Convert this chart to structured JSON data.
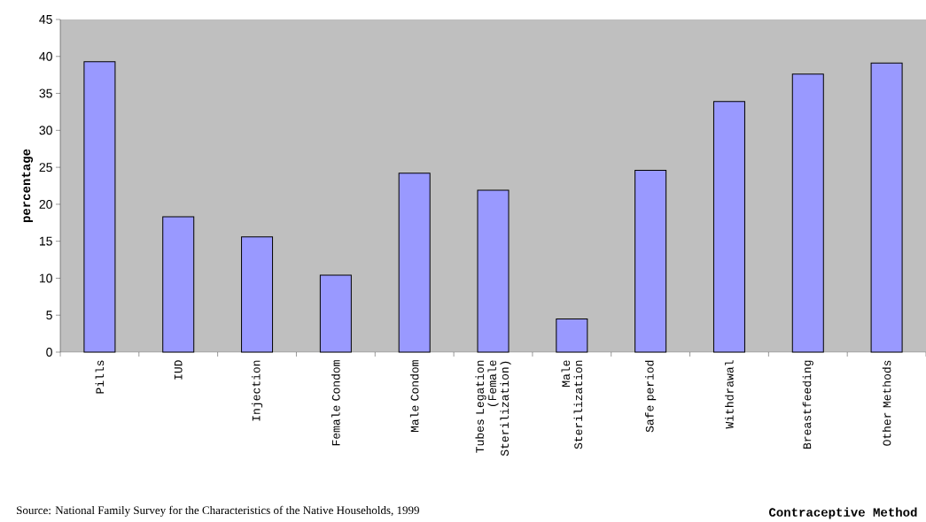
{
  "chart_data": {
    "type": "bar",
    "categories": [
      "Pills",
      "IUD",
      "Injection",
      "Female Condom",
      "Male Condom",
      "Tubes Legation (Female Sterilization)",
      "Male Sterilization",
      "Safe period",
      "Withdrawal",
      "Breastfeeding",
      "Other Methods"
    ],
    "values": [
      39.3,
      18.3,
      15.6,
      10.4,
      24.2,
      21.9,
      4.5,
      24.6,
      33.9,
      37.6,
      39.1
    ],
    "color": "#9999ff",
    "xlabel": "Contraceptive Method",
    "ylabel": "percentage",
    "ylim": [
      0,
      45
    ],
    "yticks": [
      0,
      5,
      10,
      15,
      20,
      25,
      30,
      35,
      40,
      45
    ],
    "annotations": [
      "Source: National Family Survey for the Characteristics of the Native Households, 1999"
    ]
  }
}
